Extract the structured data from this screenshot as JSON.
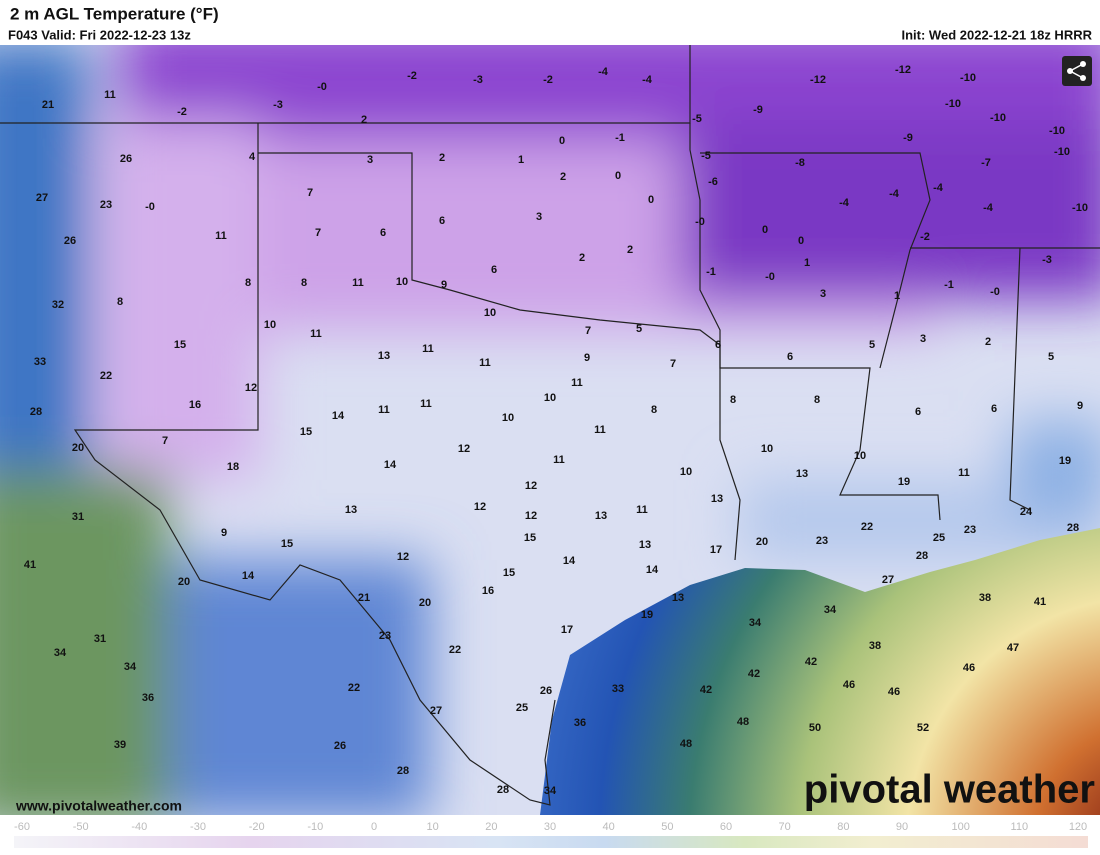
{
  "header": {
    "title": "2 m AGL Temperature (°F)",
    "valid": "F043 Valid: Fri 2022-12-23 13z",
    "init": "Init: Wed 2022-12-21 18z HRRR"
  },
  "map": {
    "labels": [
      "21",
      "11",
      "-2",
      "-3",
      "-0",
      "-2",
      "-3",
      "-2",
      "-4",
      "-4",
      "-5",
      "-12",
      "-12",
      "-10",
      "2",
      "0",
      "-1",
      "-9",
      "-10",
      "-10",
      "-10",
      "-9",
      "26",
      "4",
      "3",
      "2",
      "1",
      "-5",
      "-10",
      "-8",
      "-7",
      "27",
      "23",
      "-0",
      "7",
      "2",
      "0",
      "-6",
      "-4",
      "-4",
      "-4",
      "-4",
      "-10",
      "0",
      "3",
      "26",
      "11",
      "7",
      "6",
      "6",
      "-0",
      "0",
      "0",
      "-2",
      "2",
      "2",
      "6",
      "1",
      "-1",
      "-0",
      "-3",
      "32",
      "8",
      "8",
      "8",
      "11",
      "10",
      "9",
      "-1",
      "-0",
      "3",
      "1",
      "10",
      "7",
      "5",
      "10",
      "11",
      "15",
      "6",
      "5",
      "3",
      "2",
      "33",
      "22",
      "13",
      "11",
      "11",
      "9",
      "7",
      "6",
      "5",
      "11",
      "12",
      "16",
      "28",
      "14",
      "11",
      "11",
      "10",
      "8",
      "8",
      "8",
      "6",
      "6",
      "9",
      "10",
      "15",
      "7",
      "20",
      "11",
      "12",
      "10",
      "10",
      "19",
      "18",
      "14",
      "11",
      "10",
      "13",
      "19",
      "11",
      "12",
      "13",
      "13",
      "12",
      "12",
      "13",
      "11",
      "24",
      "31",
      "9",
      "15",
      "22",
      "25",
      "23",
      "28",
      "15",
      "13",
      "20",
      "23",
      "17",
      "12",
      "14",
      "28",
      "41",
      "14",
      "15",
      "14",
      "20",
      "16",
      "27",
      "21",
      "38",
      "41",
      "13",
      "20",
      "34",
      "19",
      "34",
      "17",
      "23",
      "31",
      "38",
      "47",
      "22",
      "34",
      "42",
      "34",
      "46",
      "42",
      "46",
      "46",
      "22",
      "33",
      "42",
      "26",
      "36",
      "27",
      "25",
      "36",
      "48",
      "50",
      "52",
      "26",
      "39",
      "48",
      "28",
      "28",
      "34"
    ]
  },
  "colorbar": {
    "ticks": [
      -60,
      -50,
      -40,
      -30,
      -20,
      -10,
      0,
      10,
      20,
      30,
      40,
      50,
      60,
      70,
      80,
      90,
      100,
      110,
      120
    ]
  },
  "footer": {
    "url": "www.pivotalweather.com",
    "logo": "pivotal weather"
  }
}
